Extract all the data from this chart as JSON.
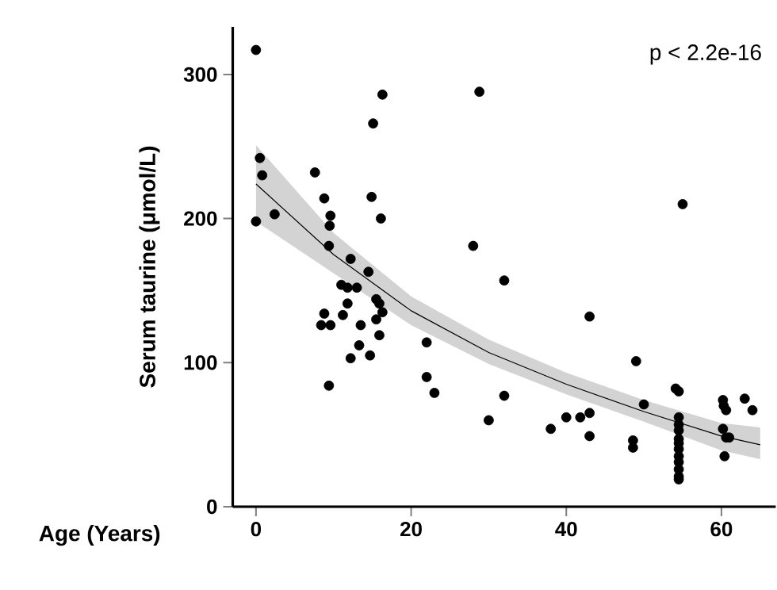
{
  "chart_data": {
    "type": "scatter",
    "xlabel": "Age (Years)",
    "ylabel": "Serum taurine (μmol/L)",
    "annotations": [
      "p < 2.2e-16"
    ],
    "xlim": [
      -3,
      67
    ],
    "ylim": [
      0,
      333
    ],
    "xticks": [
      0,
      20,
      40,
      60
    ],
    "yticks": [
      0,
      100,
      200,
      300
    ],
    "grid": false,
    "series": [
      {
        "color": "#000000",
        "marker": "circle",
        "x": [
          0,
          0.5,
          0.8,
          0,
          2.4,
          7.6,
          8.8,
          9.6,
          9.5,
          9.4,
          12.2,
          14.5,
          16.3,
          15.1,
          14.9,
          16.1,
          28.8,
          28,
          11,
          11.8,
          13,
          11.8,
          15.5,
          15.9,
          16.3,
          15.5,
          11.2,
          8.8,
          8.4,
          9.6,
          13.5,
          15.9,
          13.3,
          12.2,
          14.7,
          9.4,
          22,
          22,
          23,
          30,
          32,
          32,
          43,
          49,
          38,
          40,
          41.8,
          43,
          43,
          48.6,
          48.6,
          50,
          54.1,
          54.5,
          54.5,
          54.5,
          54.5,
          54.5,
          54.5,
          54.5,
          54.5,
          54.5,
          54.5,
          54.5,
          54.5,
          55,
          60.2,
          60.3,
          60.6,
          60.2,
          60.6,
          61,
          60.4,
          63,
          64
        ],
        "values": [
          317,
          242,
          230,
          198,
          203,
          232,
          214,
          202,
          195,
          181,
          172,
          163,
          286,
          266,
          215,
          200,
          288,
          181,
          154,
          152,
          152,
          141,
          144,
          141,
          135,
          130,
          133,
          134,
          126,
          126,
          126,
          119,
          112,
          103,
          105,
          84,
          114,
          90,
          79,
          60,
          157,
          77,
          132,
          101,
          54,
          62,
          62,
          65,
          49,
          46,
          41,
          71,
          82,
          80,
          62,
          57,
          53,
          47,
          44,
          40,
          35,
          31,
          26,
          21,
          19,
          210,
          74,
          70,
          67,
          54,
          48,
          48,
          35,
          75,
          67
        ]
      },
      {
        "type": "line",
        "color": "#000000",
        "marker": "none",
        "x": [
          0,
          10,
          20,
          30,
          40,
          50,
          60,
          65
        ],
        "values": [
          224,
          175,
          136,
          107,
          85,
          66,
          49,
          43
        ],
        "lower": [
          198,
          162,
          126,
          99,
          78,
          59,
          39,
          33
        ],
        "upper": [
          251,
          190,
          146,
          116,
          93,
          74,
          58,
          55
        ]
      }
    ]
  }
}
